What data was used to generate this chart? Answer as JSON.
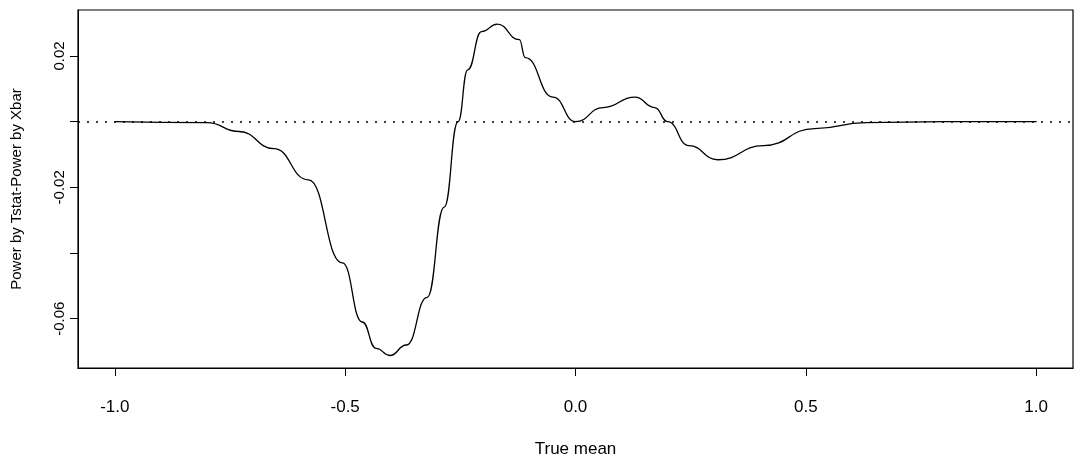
{
  "chart_data": {
    "type": "line",
    "xlabel": "True mean",
    "ylabel": "Power by Tstat-Power by Xbar",
    "x": [
      -1.0,
      -0.8,
      -0.73,
      -0.655,
      -0.58,
      -0.506,
      -0.463,
      -0.433,
      -0.403,
      -0.367,
      -0.322,
      -0.285,
      -0.255,
      -0.234,
      -0.204,
      -0.17,
      -0.122,
      -0.109,
      -0.049,
      0.0,
      0.06,
      0.129,
      0.172,
      0.2,
      0.246,
      0.309,
      0.408,
      0.519,
      0.63,
      0.8,
      1.0
    ],
    "series": [
      {
        "color": "#000000",
        "values": [
          0,
          -0.0003,
          -0.003,
          -0.0082,
          -0.0177,
          -0.043,
          -0.061,
          -0.069,
          -0.0712,
          -0.068,
          -0.0535,
          -0.026,
          0,
          0.0158,
          0.0274,
          0.0297,
          0.025,
          0.0195,
          0.0075,
          0,
          0.0043,
          0.0075,
          0.0043,
          0,
          -0.0073,
          -0.0116,
          -0.0073,
          -0.0021,
          -0.0003,
          0,
          0
        ]
      }
    ],
    "xlim": [
      -1.08,
      1.08
    ],
    "xticks": [
      {
        "value": -1,
        "label": "-1.0"
      },
      -0.5,
      {
        "value": 0,
        "label": "0.0"
      },
      0.5,
      {
        "value": 1,
        "label": "1.0"
      }
    ],
    "ylim": [
      -0.075,
      0.034
    ],
    "yticks": [
      -0.06,
      {
        "value": -0.04,
        "label": null
      },
      -0.02,
      {
        "value": 0,
        "label": null
      },
      0.02
    ],
    "ref_lines": [
      {
        "axis": "y",
        "value": 0,
        "color": "#000000",
        "line_style": "dotted"
      }
    ],
    "grid": false,
    "marker": "none",
    "line_style": "solid"
  }
}
